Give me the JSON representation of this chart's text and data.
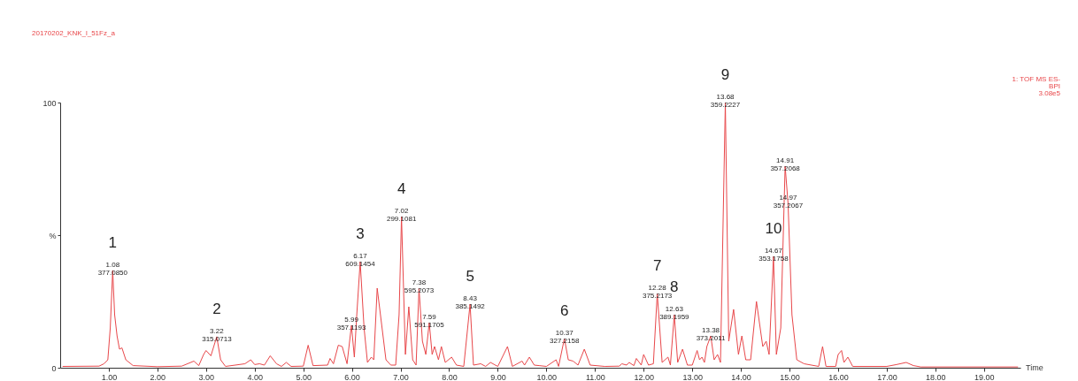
{
  "chart_data": {
    "type": "line",
    "title": "20170202_KNK_l_51Fz_a",
    "xlabel": "Time",
    "x": [
      0.05,
      0.8,
      0.9,
      0.98,
      1.03,
      1.08,
      1.12,
      1.17,
      1.22,
      1.27,
      1.35,
      1.5,
      2.0,
      2.5,
      2.75,
      2.85,
      2.95,
      3.0,
      3.1,
      3.22,
      3.3,
      3.4,
      3.8,
      3.92,
      4.0,
      4.1,
      4.2,
      4.32,
      4.45,
      4.55,
      4.65,
      4.75,
      5.0,
      5.1,
      5.2,
      5.5,
      5.55,
      5.62,
      5.72,
      5.8,
      5.9,
      5.99,
      6.05,
      6.1,
      6.17,
      6.25,
      6.32,
      6.4,
      6.45,
      6.52,
      6.6,
      6.7,
      6.8,
      6.9,
      6.97,
      7.02,
      7.1,
      7.17,
      7.25,
      7.32,
      7.38,
      7.45,
      7.52,
      7.59,
      7.65,
      7.7,
      7.78,
      7.84,
      7.92,
      8.05,
      8.15,
      8.3,
      8.43,
      8.5,
      8.65,
      8.75,
      8.85,
      9.0,
      9.2,
      9.3,
      9.5,
      9.55,
      9.65,
      9.75,
      9.85,
      10.0,
      10.2,
      10.25,
      10.37,
      10.45,
      10.55,
      10.65,
      10.78,
      10.9,
      11.2,
      11.5,
      11.55,
      11.65,
      11.7,
      11.8,
      11.85,
      11.95,
      12.0,
      12.1,
      12.2,
      12.28,
      12.38,
      12.5,
      12.55,
      12.63,
      12.7,
      12.8,
      12.9,
      13.0,
      13.1,
      13.15,
      13.2,
      13.25,
      13.3,
      13.38,
      13.45,
      13.52,
      13.58,
      13.68,
      13.75,
      13.85,
      13.95,
      14.02,
      14.1,
      14.2,
      14.32,
      14.45,
      14.52,
      14.58,
      14.67,
      14.73,
      14.82,
      14.91,
      14.97,
      15.05,
      15.15,
      15.3,
      15.6,
      15.68,
      15.75,
      15.95,
      16.0,
      16.07,
      16.12,
      16.2,
      16.3,
      17.0,
      17.2,
      17.4,
      17.55,
      17.7,
      19.7
    ],
    "series": [
      {
        "color": "#e8474a",
        "values": [
          0.5,
          0.6,
          1.5,
          3,
          15,
          36.7,
          20,
          12,
          7,
          7.5,
          3,
          0.8,
          0.4,
          0.6,
          2.5,
          0.8,
          5,
          6.5,
          4.5,
          11.7,
          3,
          0.5,
          1.5,
          3,
          1.2,
          1.5,
          1,
          4.5,
          1.5,
          0.5,
          2,
          0.5,
          0.6,
          8.5,
          0.8,
          1,
          3.5,
          1.5,
          8.5,
          8,
          1.5,
          16,
          4,
          20,
          40,
          15,
          2,
          4,
          3,
          30,
          18,
          3,
          1,
          1,
          20,
          57,
          5,
          23,
          3,
          1,
          30,
          10,
          5,
          17,
          5,
          8,
          3,
          8,
          2,
          4,
          1,
          0.5,
          24,
          1,
          1.5,
          0.5,
          2,
          0.5,
          8,
          0.5,
          2.5,
          1,
          4,
          1,
          0.8,
          0.5,
          3,
          0.5,
          11,
          3,
          2.5,
          1,
          7,
          1,
          0.5,
          0.6,
          1.5,
          1,
          2,
          0.8,
          3.5,
          1,
          5,
          1,
          1.5,
          28,
          2,
          4,
          1,
          20,
          2,
          7,
          1,
          1,
          6.5,
          3,
          4,
          2,
          8,
          12,
          3,
          5,
          2,
          100,
          10,
          22,
          5,
          12,
          3,
          3,
          25,
          8,
          10,
          5,
          42,
          5,
          15,
          76,
          62,
          20,
          3,
          1.5,
          0.5,
          8,
          0.5,
          0.5,
          5,
          6.5,
          2,
          4,
          0.5,
          0.5,
          1.2,
          2,
          0.8,
          0.3,
          0.3
        ]
      }
    ],
    "xlim": [
      0,
      19.75
    ],
    "xticks": [
      {
        "value": 1,
        "label": "1.00"
      },
      {
        "value": 2,
        "label": "2.00"
      },
      {
        "value": 3,
        "label": "3.00"
      },
      {
        "value": 4,
        "label": "4.00"
      },
      {
        "value": 5,
        "label": "5.00"
      },
      {
        "value": 6,
        "label": "6.00"
      },
      {
        "value": 7,
        "label": "7.00"
      },
      {
        "value": 8,
        "label": "8.00"
      },
      {
        "value": 9,
        "label": "9.00"
      },
      {
        "value": 10,
        "label": "10.00"
      },
      {
        "value": 11,
        "label": "11.00"
      },
      {
        "value": 12,
        "label": "12.00"
      },
      {
        "value": 13,
        "label": "13.00"
      },
      {
        "value": 14,
        "label": "14.00"
      },
      {
        "value": 15,
        "label": "15.00"
      },
      {
        "value": 16,
        "label": "16.00"
      },
      {
        "value": 17,
        "label": "17.00"
      },
      {
        "value": 18,
        "label": "18.00"
      },
      {
        "value": 19,
        "label": "19.00"
      }
    ],
    "ylim": [
      0,
      100
    ],
    "yticks": [
      0,
      {
        "value": 50,
        "label": "%"
      },
      100
    ],
    "grid": false,
    "marker": "none",
    "line_style": "solid",
    "annotations": [
      "1: TOF MS ES-\nBPI\n3.08e5",
      {
        "text": "1.08\n377.0850",
        "x": 1.08,
        "y": 36.7
      },
      {
        "text": "3.22\n315.0713",
        "x": 3.22,
        "y": 11.7
      },
      {
        "text": "5.99\n357.1193",
        "x": 5.99,
        "y": 16
      },
      {
        "text": "6.17\n609.1454",
        "x": 6.17,
        "y": 40
      },
      {
        "text": "7.02\n299.1081",
        "x": 7.02,
        "y": 57
      },
      {
        "text": "7.38\n595.2073",
        "x": 7.38,
        "y": 30
      },
      {
        "text": "7.59\n591.1705",
        "x": 7.59,
        "y": 17
      },
      {
        "text": "8.43\n385.1492",
        "x": 8.43,
        "y": 24
      },
      {
        "text": "10.37\n327.2158",
        "x": 10.37,
        "y": 11
      },
      {
        "text": "12.28\n375.2173",
        "x": 12.28,
        "y": 28
      },
      {
        "text": "12.63\n389.1959",
        "x": 12.63,
        "y": 20
      },
      {
        "text": "13.38\n373.2011",
        "x": 13.38,
        "y": 12
      },
      {
        "text": "13.68\n359.2227",
        "x": 13.68,
        "y": 100
      },
      {
        "text": "14.67\n353.1758",
        "x": 14.67,
        "y": 42
      },
      {
        "text": "14.91\n357.2068",
        "x": 14.91,
        "y": 76
      },
      {
        "text": "14.97\n357.2067",
        "x": 14.97,
        "y": 62
      },
      {
        "text": "1",
        "x": 1.08,
        "y": 36.7
      },
      {
        "text": "2",
        "x": 3.22,
        "y": 11.7
      },
      {
        "text": "3",
        "x": 6.17,
        "y": 40
      },
      {
        "text": "4",
        "x": 7.02,
        "y": 57
      },
      {
        "text": "5",
        "x": 8.43,
        "y": 24
      },
      {
        "text": "6",
        "x": 10.37,
        "y": 11
      },
      {
        "text": "7",
        "x": 12.28,
        "y": 28
      },
      {
        "text": "8",
        "x": 12.63,
        "y": 20
      },
      {
        "text": "9",
        "x": 13.68,
        "y": 100
      },
      {
        "text": "10",
        "x": 14.67,
        "y": 42
      }
    ]
  }
}
